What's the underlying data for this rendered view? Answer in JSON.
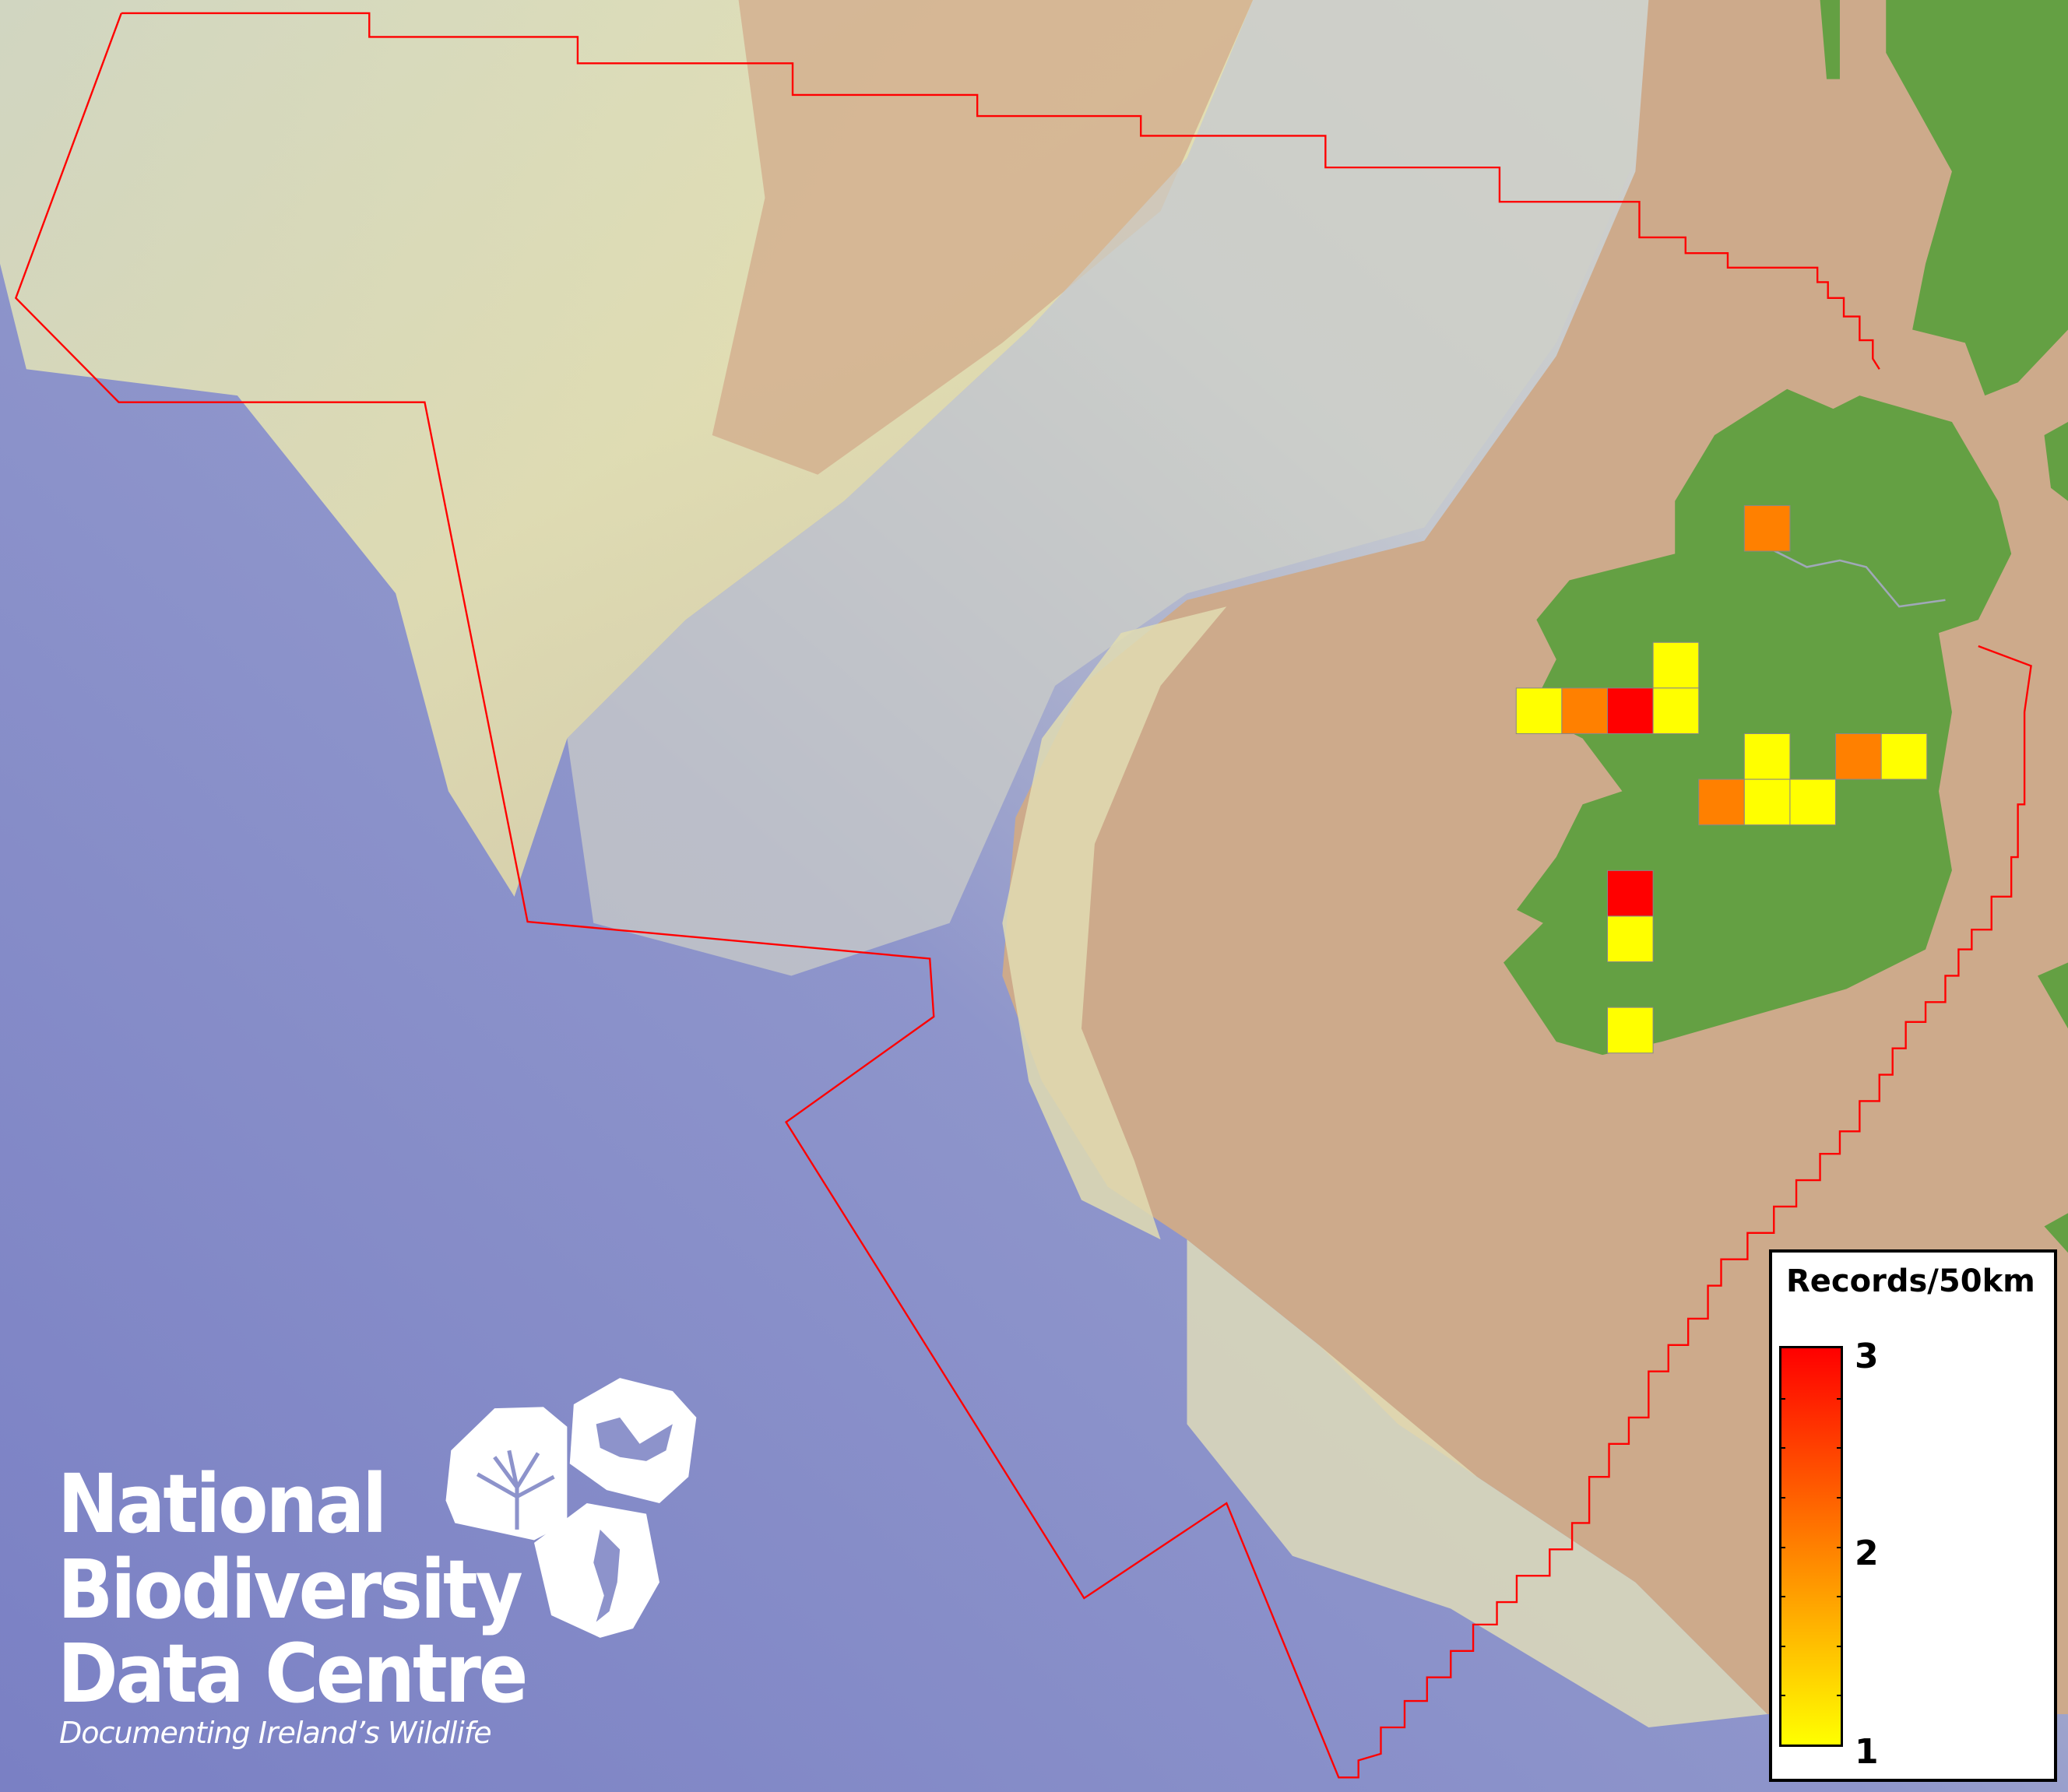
{
  "map": {
    "colors": {
      "ocean_deep": "#7c83c6",
      "shelf": "#e2e2b8",
      "land_sea_tan": "#cda98a",
      "land_green": "#64a043",
      "boundary": "#ff0000",
      "cell_border": "#888888"
    },
    "cells": [
      {
        "value": 2
      },
      {
        "value": 1
      },
      {
        "value": 1
      },
      {
        "value": 2
      },
      {
        "value": 3
      },
      {
        "value": 1
      },
      {
        "value": 1
      },
      {
        "value": 2
      },
      {
        "value": 1
      },
      {
        "value": 2
      },
      {
        "value": 1
      },
      {
        "value": 1
      },
      {
        "value": 3
      },
      {
        "value": 1
      },
      {
        "value": 1
      }
    ]
  },
  "legend": {
    "title": "Records/50km",
    "min": 1,
    "max": 3,
    "labels": [
      "3",
      "2",
      "1"
    ],
    "colors": {
      "low": "#ffff00",
      "mid": "#ff8000",
      "high": "#ff0000"
    }
  },
  "logo": {
    "line1": "National",
    "line2": "Biodiversity",
    "line3": "Data Centre",
    "tagline": "Documenting Ireland’s Wildlife",
    "icons": [
      "tree-icon",
      "butterfly-icon",
      "seahorse-icon"
    ]
  }
}
